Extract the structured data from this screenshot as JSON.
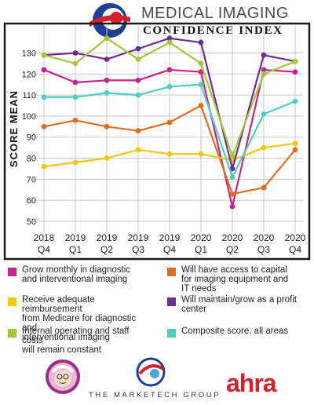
{
  "header": {
    "title_main": "MEDICAL IMAGING",
    "title_sub": "CONFIDENCE INDEX"
  },
  "colors": {
    "frame": "#1a1a1a",
    "grid": "#c8c8c8",
    "brand_red": "#d3202a",
    "brand_blue": "#1f3f8f"
  },
  "chart_data": {
    "type": "line",
    "ylabel": "SCORE MEAN",
    "xlabel": "",
    "ylim": [
      47,
      141
    ],
    "yticks": [
      50,
      60,
      70,
      80,
      90,
      100,
      110,
      120,
      130
    ],
    "grid": true,
    "x": [
      {
        "year": "2018",
        "q": "Q4"
      },
      {
        "year": "2019",
        "q": "Q1"
      },
      {
        "year": "2019",
        "q": "Q2"
      },
      {
        "year": "2019",
        "q": "Q3"
      },
      {
        "year": "2019",
        "q": "Q4"
      },
      {
        "year": "2020",
        "q": "Q1"
      },
      {
        "year": "2020",
        "q": "Q2"
      },
      {
        "year": "2020",
        "q": "Q3"
      },
      {
        "year": "2020",
        "q": "Q4"
      }
    ],
    "series": [
      {
        "name": "Grow monthly in diagnostic and interventional imaging",
        "color": "#c2268c",
        "values": [
          122,
          116,
          117,
          117,
          122,
          121,
          57,
          122,
          121
        ]
      },
      {
        "name": "Will have access to capital for imaging equipment and IT needs",
        "color": "#e06d1f",
        "values": [
          95,
          98,
          95,
          93,
          97,
          105,
          63,
          66,
          84
        ]
      },
      {
        "name": "Receive adequate reimbursement from Medicare for diagnostic and interventional imaging",
        "color": "#f1c716",
        "values": [
          76,
          78,
          80,
          84,
          82,
          82,
          79,
          85,
          87
        ]
      },
      {
        "name": "Will maintain/grow as a profit center",
        "color": "#6e2c91",
        "values": [
          129,
          130,
          127,
          132,
          137,
          135,
          75,
          129,
          126
        ]
      },
      {
        "name": "Internal operating and staff costs will remain constant",
        "color": "#a3c63a",
        "values": [
          129,
          125,
          137,
          127,
          135,
          125,
          81,
          120,
          126
        ]
      },
      {
        "name": "Composite score, all areas",
        "color": "#4fcdc0",
        "values": [
          109,
          109,
          111,
          110,
          114,
          115,
          71,
          101,
          107
        ]
      }
    ]
  },
  "legend": {
    "items": [
      {
        "label_l1": "Grow monthly in diagnostic",
        "label_l2": "and interventional imaging",
        "label_l3": "",
        "color": "#c2268c"
      },
      {
        "label_l1": "Will have access to capital",
        "label_l2": "for imaging equipment and",
        "label_l3": "IT needs",
        "color": "#e06d1f"
      },
      {
        "label_l1": "Receive adequate reimbursement",
        "label_l2": "from Medicare for diagnostic and",
        "label_l3": "interventional imaging",
        "color": "#f1c716"
      },
      {
        "label_l1": "Will maintain/grow as a profit",
        "label_l2": "center",
        "label_l3": "",
        "color": "#6e2c91"
      },
      {
        "label_l1": "Internal operating and staff costs",
        "label_l2": "will remain constant",
        "label_l3": "",
        "color": "#a3c63a"
      },
      {
        "label_l1": "Composite score, all areas",
        "label_l2": "",
        "label_l3": "",
        "color": "#4fcdc0"
      }
    ]
  },
  "footer": {
    "marketech_label": "THE MARKETECH GROUP",
    "ahra_label": "ahra"
  }
}
